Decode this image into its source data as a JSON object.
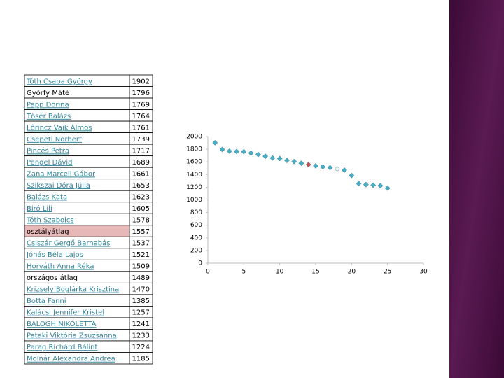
{
  "table": {
    "rows": [
      [
        "Tóth Csaba György",
        1902
      ],
      [
        "Győrfy Máté",
        1796
      ],
      [
        "Papp Dorina",
        1769
      ],
      [
        "Tősér Balázs",
        1764
      ],
      [
        "Lőrincz Vajk Álmos",
        1761
      ],
      [
        "Csepeti Norbert",
        1739
      ],
      [
        "Pincés Petra",
        1717
      ],
      [
        "Pengel Dávid",
        1689
      ],
      [
        "Zana Marcell Gábor",
        1661
      ],
      [
        "Szikszai Dóra Júlia",
        1653
      ],
      [
        "Balázs Kata",
        1623
      ],
      [
        "Biró Lili",
        1605
      ],
      [
        "Tóth Szabolcs",
        1578
      ],
      [
        "osztályátlag",
        1557
      ],
      [
        "Csiszár Gergő Barnabás",
        1537
      ],
      [
        "Jónás Béla Lajos",
        1521
      ],
      [
        "Horváth Anna Réka",
        1509
      ],
      [
        "országos átlag",
        1489
      ],
      [
        "Krizsely Boglárka Krisztina",
        1470
      ],
      [
        "Botta Fanni",
        1385
      ],
      [
        "Kalácsi Jennifer Kristel",
        1257
      ],
      [
        "BALOGH NIKOLETTA",
        1241
      ],
      [
        "Pataki Viktória Zsuzsanna",
        1233
      ],
      [
        "Parag Richárd Bálint",
        1224
      ],
      [
        "Molnár Alexandra Andrea",
        1185
      ]
    ],
    "text_colors": [
      "#31859c",
      "#000000",
      "#31859c",
      "#31859c",
      "#31859c",
      "#31859c",
      "#31859c",
      "#31859c",
      "#31859c",
      "#31859c",
      "#31859c",
      "#31859c",
      "#31859c",
      "#000000",
      "#31859c",
      "#31859c",
      "#31859c",
      "#000000",
      "#31859c",
      "#31859c",
      "#31859c",
      "#31859c",
      "#31859c",
      "#31859c",
      "#31859c"
    ],
    "row_fills": [
      "#ffffff",
      "#ffffff",
      "#ffffff",
      "#ffffff",
      "#ffffff",
      "#ffffff",
      "#ffffff",
      "#ffffff",
      "#ffffff",
      "#ffffff",
      "#ffffff",
      "#ffffff",
      "#ffffff",
      "#e6b8b7",
      "#ffffff",
      "#ffffff",
      "#ffffff",
      "#ffffff",
      "#ffffff",
      "#ffffff",
      "#ffffff",
      "#ffffff",
      "#ffffff",
      "#ffffff",
      "#ffffff"
    ]
  },
  "chart_data": {
    "type": "scatter",
    "x": [
      1,
      2,
      3,
      4,
      5,
      6,
      7,
      8,
      9,
      10,
      11,
      12,
      13,
      14,
      15,
      16,
      17,
      18,
      19,
      20,
      21,
      22,
      23,
      24,
      25
    ],
    "values": [
      1902,
      1796,
      1769,
      1764,
      1761,
      1739,
      1717,
      1689,
      1661,
      1653,
      1623,
      1605,
      1578,
      1557,
      1537,
      1521,
      1509,
      1489,
      1470,
      1385,
      1257,
      1241,
      1233,
      1224,
      1185
    ],
    "colors": [
      "#4bacc6",
      "#4bacc6",
      "#4bacc6",
      "#4bacc6",
      "#4bacc6",
      "#4bacc6",
      "#4bacc6",
      "#4bacc6",
      "#4bacc6",
      "#4bacc6",
      "#4bacc6",
      "#4bacc6",
      "#4bacc6",
      "#c0504d",
      "#4bacc6",
      "#4bacc6",
      "#4bacc6",
      "#f2f2f2",
      "#4bacc6",
      "#4bacc6",
      "#4bacc6",
      "#4bacc6",
      "#4bacc6",
      "#4bacc6",
      "#4bacc6"
    ],
    "xlim": [
      0,
      30
    ],
    "xticks": [
      0,
      5,
      10,
      15,
      20,
      25,
      30
    ],
    "ylim": [
      0,
      2000
    ],
    "yticks": [
      0,
      200,
      400,
      600,
      800,
      1000,
      1200,
      1400,
      1600,
      1800,
      2000
    ]
  }
}
